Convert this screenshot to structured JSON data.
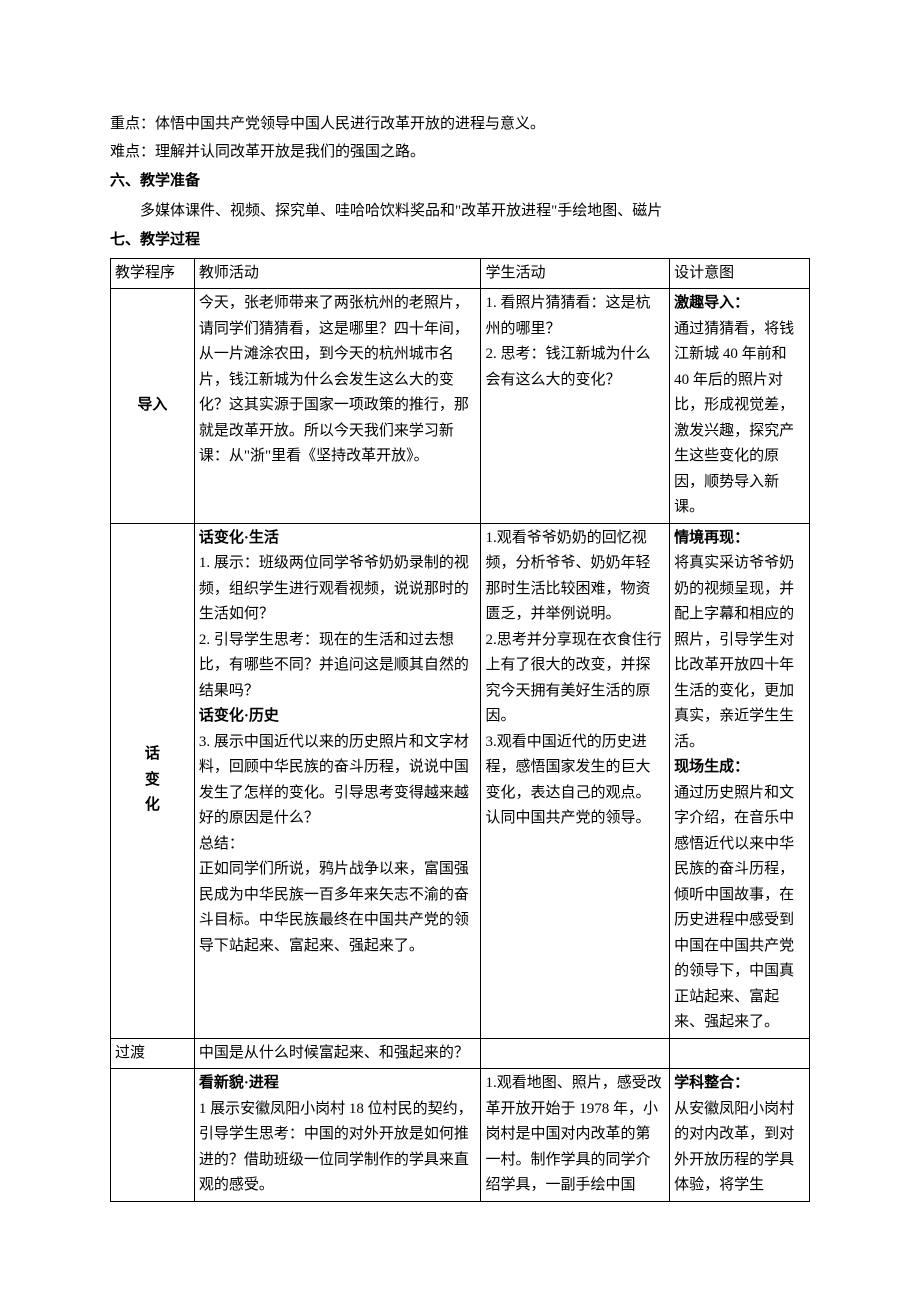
{
  "pre": {
    "keypoint": "重点：体悟中国共产党领导中国人民进行改革开放的进程与意义。",
    "difficulty": "难点：理解并认同改革开放是我们的强国之路。",
    "h6": "六、教学准备",
    "prep": "多媒体课件、视频、探究单、哇哈哈饮料奖品和\"改革开放进程\"手绘地图、磁片",
    "h7": "七、教学过程"
  },
  "table": {
    "header": {
      "c1": "教学程序",
      "c2": "教师活动",
      "c3": "学生活动",
      "c4": "设计意图"
    },
    "row1": {
      "c1": "导入",
      "c2": "今天，张老师带来了两张杭州的老照片，请同学们猜猜看，这是哪里？四十年间，从一片滩涂农田，到今天的杭州城市名片，钱江新城为什么会发生这么大的变化？这其实源于国家一项政策的推行，那就是改革开放。所以今天我们来学习新课：从\"浙\"里看《坚持改革开放》。",
      "c3a": "1. 看照片猜猜看：这是杭州的哪里？",
      "c3b": "2. 思考：钱江新城为什么会有这么大的变化？",
      "c4t": "激趣导入：",
      "c4": "通过猜猜看，将钱江新城 40 年前和 40 年后的照片对比，形成视觉差，激发兴趣，探究产生这些变化的原因，顺势导入新课。"
    },
    "row2": {
      "c1a": "话",
      "c1b": "变",
      "c1c": "化",
      "c2t1": "话变化·生活",
      "c2a": "1. 展示：班级两位同学爷爷奶奶录制的视频，组织学生进行观看视频，说说那时的生活如何？",
      "c2b": "2. 引导学生思考：现在的生活和过去想比，有哪些不同？并追问这是顺其自然的结果吗？",
      "c2t2": "话变化·历史",
      "c2c": "3. 展示中国近代以来的历史照片和文字材料，回顾中华民族的奋斗历程，说说中国发生了怎样的变化。引导思考变得越来越好的原因是什么？",
      "c2d": "总结：",
      "c2e": "正如同学们所说，鸦片战争以来，富国强民成为中华民族一百多年来矢志不渝的奋斗目标。中华民族最终在中国共产党的领导下站起来、富起来、强起来了。",
      "c3a": "1.观看爷爷奶奶的回忆视频，分析爷爷、奶奶年轻那时生活比较困难，物资匮乏，并举例说明。",
      "c3b": "2.思考并分享现在衣食住行上有了很大的改变，并探究今天拥有美好生活的原因。",
      "c3c": "3.观看中国近代的历史进程，感悟国家发生的巨大变化，表达自己的观点。认同中国共产党的领导。",
      "c4t1": "情境再现：",
      "c4a": "将真实采访爷爷奶奶的视频呈现，并配上字幕和相应的照片，引导学生对比改革开放四十年生活的变化，更加真实，亲近学生生活。",
      "c4t2": "现场生成：",
      "c4b": "通过历史照片和文字介绍，在音乐中感悟近代以来中华民族的奋斗历程，倾听中国故事，在历史进程中感受到中国在中国共产党的领导下，中国真正站起来、富起来、强起来了。"
    },
    "row3": {
      "c1": "过渡",
      "c2": "中国是从什么时候富起来、和强起来的？"
    },
    "row4": {
      "c2t": "看新貌·进程",
      "c2": "1 展示安徽凤阳小岗村 18 位村民的契约，引导学生思考：中国的对外开放是如何推进的？借助班级一位同学制作的学具来直观的感受。",
      "c3": "1.观看地图、照片，感受改革开放开始于 1978 年，小岗村是中国对内改革的第一村。制作学具的同学介绍学具，一副手绘中国",
      "c4t": "学科整合：",
      "c4": "从安徽凤阳小岗村的对内改革，到对外开放历程的学具体验，将学生"
    }
  }
}
